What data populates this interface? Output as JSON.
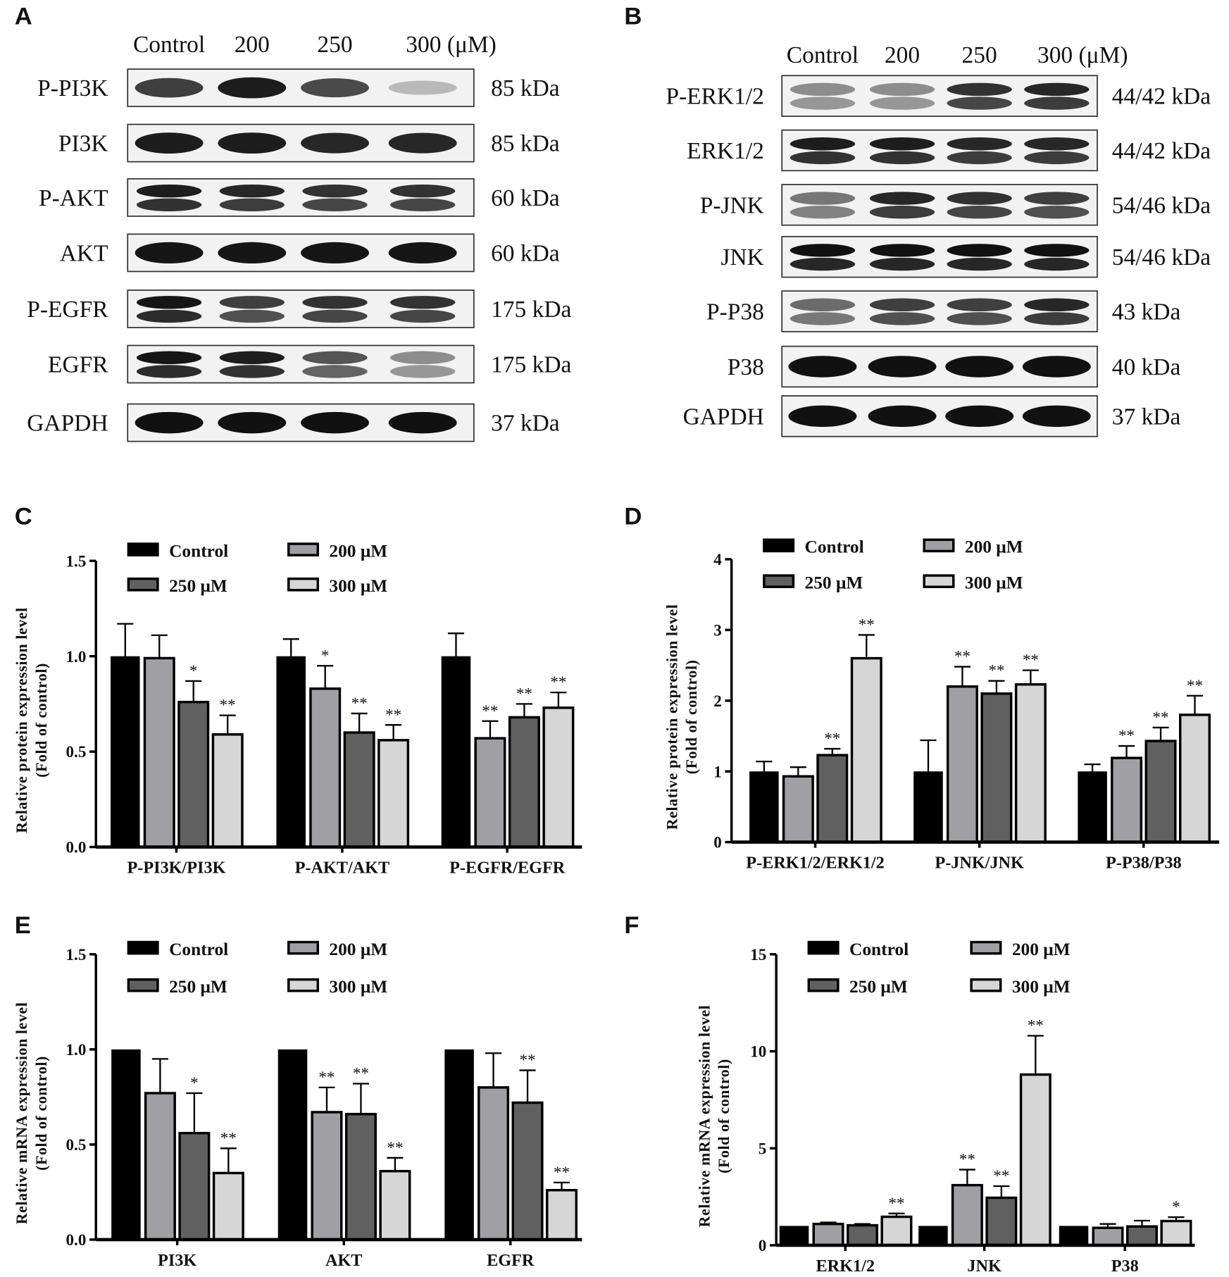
{
  "panels": {
    "A": "A",
    "B": "B",
    "C": "C",
    "D": "D",
    "E": "E",
    "F": "F"
  },
  "blot_A": {
    "lanes": [
      "Control",
      "200",
      "250",
      "300 (μM)"
    ],
    "rows": [
      {
        "protein": "P-PI3K",
        "size": "85 kDa"
      },
      {
        "protein": "PI3K",
        "size": "85 kDa"
      },
      {
        "protein": "P-AKT",
        "size": "60 kDa"
      },
      {
        "protein": "AKT",
        "size": "60 kDa"
      },
      {
        "protein": "P-EGFR",
        "size": "175 kDa"
      },
      {
        "protein": "EGFR",
        "size": "175 kDa"
      },
      {
        "protein": "GAPDH",
        "size": "37 kDa"
      }
    ]
  },
  "blot_B": {
    "lanes": [
      "Control",
      "200",
      "250",
      "300 (μM)"
    ],
    "rows": [
      {
        "protein": "P-ERK1/2",
        "size": "44/42 kDa"
      },
      {
        "protein": "ERK1/2",
        "size": "44/42 kDa"
      },
      {
        "protein": "P-JNK",
        "size": "54/46 kDa"
      },
      {
        "protein": "JNK",
        "size": "54/46 kDa"
      },
      {
        "protein": "P-P38",
        "size": "43 kDa"
      },
      {
        "protein": "P38",
        "size": "40 kDa"
      },
      {
        "protein": "GAPDH",
        "size": "37 kDa"
      }
    ]
  },
  "colors": {
    "Control": "#000000",
    "200 μM": "#a0a0a4",
    "250 μM": "#606060",
    "300 μM": "#d6d6d6"
  },
  "chart_data": [
    {
      "panel": "C",
      "type": "bar",
      "ylabel": [
        "Relative protein expression level",
        "(Fold of control)"
      ],
      "ylim": [
        0,
        1.5
      ],
      "yticks": [
        "0.0",
        "0.5",
        "1.0",
        "1.5"
      ],
      "categories": [
        "P-PI3K/PI3K",
        "P-AKT/AKT",
        "P-EGFR/EGFR"
      ],
      "legend": [
        "Control",
        "200 μM",
        "250 μM",
        "300 μM"
      ],
      "series": [
        {
          "name": "Control",
          "values": [
            1.0,
            1.0,
            1.0
          ],
          "errors": [
            0.17,
            0.09,
            0.12
          ],
          "sig": [
            "",
            "",
            ""
          ]
        },
        {
          "name": "200 μM",
          "values": [
            0.99,
            0.83,
            0.57
          ],
          "errors": [
            0.12,
            0.12,
            0.09
          ],
          "sig": [
            "",
            "*",
            "**"
          ]
        },
        {
          "name": "250 μM",
          "values": [
            0.76,
            0.6,
            0.68
          ],
          "errors": [
            0.11,
            0.1,
            0.07
          ],
          "sig": [
            "*",
            "**",
            "**"
          ]
        },
        {
          "name": "300 μM",
          "values": [
            0.59,
            0.56,
            0.73
          ],
          "errors": [
            0.1,
            0.08,
            0.08
          ],
          "sig": [
            "**",
            "**",
            "**"
          ]
        }
      ]
    },
    {
      "panel": "D",
      "type": "bar",
      "ylabel": [
        "Relative protein expression level",
        "(Fold of control)"
      ],
      "ylim": [
        0,
        4
      ],
      "yticks": [
        "0",
        "1",
        "2",
        "3",
        "4"
      ],
      "categories": [
        "P-ERK1/2/ERK1/2",
        "P-JNK/JNK",
        "P-P38/P38"
      ],
      "legend": [
        "Control",
        "200 μM",
        "250 μM",
        "300 μM"
      ],
      "series": [
        {
          "name": "Control",
          "values": [
            1.0,
            1.0,
            1.0
          ],
          "errors": [
            0.14,
            0.44,
            0.1
          ],
          "sig": [
            "",
            "",
            ""
          ]
        },
        {
          "name": "200 μM",
          "values": [
            0.93,
            2.2,
            1.19
          ],
          "errors": [
            0.13,
            0.28,
            0.17
          ],
          "sig": [
            "",
            "**",
            "**"
          ]
        },
        {
          "name": "250 μM",
          "values": [
            1.23,
            2.1,
            1.43
          ],
          "errors": [
            0.09,
            0.18,
            0.19
          ],
          "sig": [
            "**",
            "**",
            "**"
          ]
        },
        {
          "name": "300 μM",
          "values": [
            2.6,
            2.23,
            1.8
          ],
          "errors": [
            0.33,
            0.2,
            0.27
          ],
          "sig": [
            "**",
            "**",
            "**"
          ]
        }
      ]
    },
    {
      "panel": "E",
      "type": "bar",
      "ylabel": [
        "Relative mRNA expression level",
        "(Fold of control)"
      ],
      "ylim": [
        0,
        1.5
      ],
      "yticks": [
        "0.0",
        "0.5",
        "1.0",
        "1.5"
      ],
      "categories": [
        "PI3K",
        "AKT",
        "EGFR"
      ],
      "legend": [
        "Control",
        "200 μM",
        "250 μM",
        "300 μM"
      ],
      "series": [
        {
          "name": "Control",
          "values": [
            1.0,
            1.0,
            1.0
          ],
          "errors": [
            0,
            0,
            0
          ],
          "sig": [
            "",
            "",
            ""
          ]
        },
        {
          "name": "200 μM",
          "values": [
            0.77,
            0.67,
            0.8
          ],
          "errors": [
            0.18,
            0.13,
            0.18
          ],
          "sig": [
            "",
            "**",
            ""
          ]
        },
        {
          "name": "250 μM",
          "values": [
            0.56,
            0.66,
            0.72
          ],
          "errors": [
            0.21,
            0.16,
            0.17
          ],
          "sig": [
            "*",
            "**",
            "**"
          ]
        },
        {
          "name": "300 μM",
          "values": [
            0.35,
            0.36,
            0.26
          ],
          "errors": [
            0.13,
            0.07,
            0.04
          ],
          "sig": [
            "**",
            "**",
            "**"
          ]
        }
      ]
    },
    {
      "panel": "F",
      "type": "bar",
      "ylabel": [
        "Relative mRNA expression level",
        "(Fold of control)"
      ],
      "ylim": [
        0,
        15
      ],
      "yticks": [
        "0",
        "5",
        "10",
        "15"
      ],
      "categories": [
        "ERK1/2",
        "JNK",
        "P38"
      ],
      "legend": [
        "Control",
        "200 μM",
        "250 μM",
        "300 μM"
      ],
      "series": [
        {
          "name": "Control",
          "values": [
            1.0,
            1.0,
            1.0
          ],
          "errors": [
            0,
            0,
            0
          ],
          "sig": [
            "",
            "",
            ""
          ]
        },
        {
          "name": "200 μM",
          "values": [
            1.1,
            3.1,
            0.9
          ],
          "errors": [
            0.08,
            0.8,
            0.2
          ],
          "sig": [
            "",
            "**",
            ""
          ]
        },
        {
          "name": "250 μM",
          "values": [
            1.03,
            2.45,
            0.97
          ],
          "errors": [
            0.07,
            0.6,
            0.3
          ],
          "sig": [
            "",
            "**",
            ""
          ]
        },
        {
          "name": "300 μM",
          "values": [
            1.47,
            8.8,
            1.25
          ],
          "errors": [
            0.17,
            2.0,
            0.2
          ],
          "sig": [
            "**",
            "**",
            "*"
          ]
        }
      ]
    }
  ]
}
